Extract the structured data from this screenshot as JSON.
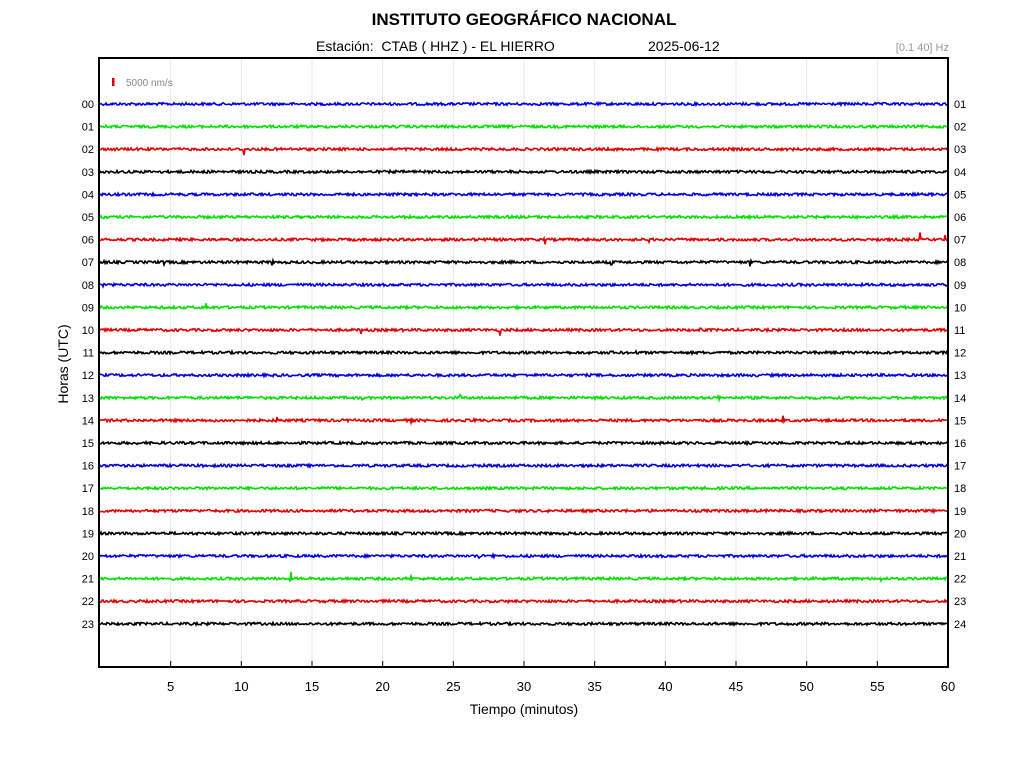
{
  "header": {
    "title": "INSTITUTO GEOGRÁFICO NACIONAL",
    "station": "Estación:  CTAB ( HHZ ) - EL HIERRO",
    "date": "2025-06-12",
    "band": "[0.1 40] Hz"
  },
  "chart_data": {
    "type": "line",
    "title": "INSTITUTO GEOGRÁFICO NACIONAL",
    "xlabel": "Tiempo (minutos)",
    "ylabel": "Horas (UTC)",
    "xlim": [
      0,
      60
    ],
    "x_ticks": [
      5,
      10,
      15,
      20,
      25,
      30,
      35,
      40,
      45,
      50,
      55,
      60
    ],
    "y_ticks_left": [
      "00",
      "01",
      "02",
      "03",
      "04",
      "05",
      "06",
      "07",
      "08",
      "09",
      "10",
      "11",
      "12",
      "13",
      "14",
      "15",
      "16",
      "17",
      "18",
      "19",
      "20",
      "21",
      "22",
      "23"
    ],
    "y_ticks_right": [
      "01",
      "02",
      "03",
      "04",
      "05",
      "06",
      "07",
      "08",
      "09",
      "10",
      "11",
      "12",
      "13",
      "14",
      "15",
      "16",
      "17",
      "18",
      "19",
      "20",
      "21",
      "22",
      "23",
      "24"
    ],
    "scale_label": "5000 nm/s",
    "scale_color": "#e00000",
    "grid": "vertical",
    "trace_colors": [
      "#0000e0",
      "#00e000",
      "#e00000",
      "#000000"
    ],
    "events": [
      {
        "hour": 2,
        "minute": 10.2,
        "amp": 8
      },
      {
        "hour": 6,
        "minute": 31.5,
        "amp": 4
      },
      {
        "hour": 6,
        "minute": 38.8,
        "amp": 3
      },
      {
        "hour": 6,
        "minute": 58.0,
        "amp": 7
      },
      {
        "hour": 6,
        "minute": 59.8,
        "amp": 5
      },
      {
        "hour": 7,
        "minute": 0.2,
        "amp": 4
      },
      {
        "hour": 7,
        "minute": 4.5,
        "amp": 3
      },
      {
        "hour": 7,
        "minute": 12.2,
        "amp": 3
      },
      {
        "hour": 7,
        "minute": 36.2,
        "amp": 5
      },
      {
        "hour": 7,
        "minute": 46.0,
        "amp": 3
      },
      {
        "hour": 8,
        "minute": 0.2,
        "amp": 5
      },
      {
        "hour": 9,
        "minute": 7.5,
        "amp": 5
      },
      {
        "hour": 10,
        "minute": 18.5,
        "amp": 6
      },
      {
        "hour": 10,
        "minute": 28.3,
        "amp": 5
      },
      {
        "hour": 10,
        "minute": 42.5,
        "amp": 3
      },
      {
        "hour": 11,
        "minute": 36.2,
        "amp": 4
      },
      {
        "hour": 11,
        "minute": 38.0,
        "amp": 4
      },
      {
        "hour": 13,
        "minute": 18.5,
        "amp": 3
      },
      {
        "hour": 13,
        "minute": 25.5,
        "amp": 3
      },
      {
        "hour": 13,
        "minute": 43.8,
        "amp": 4
      },
      {
        "hour": 14,
        "minute": 12.5,
        "amp": 4
      },
      {
        "hour": 14,
        "minute": 22.0,
        "amp": 3
      },
      {
        "hour": 14,
        "minute": 26.5,
        "amp": 4
      },
      {
        "hour": 14,
        "minute": 48.3,
        "amp": 5
      },
      {
        "hour": 20,
        "minute": 26.8,
        "amp": 6
      },
      {
        "hour": 20,
        "minute": 27.8,
        "amp": 5
      },
      {
        "hour": 21,
        "minute": 13.5,
        "amp": 6
      },
      {
        "hour": 21,
        "minute": 22.0,
        "amp": 3
      },
      {
        "hour": 21,
        "minute": 55.3,
        "amp": 3
      }
    ]
  }
}
